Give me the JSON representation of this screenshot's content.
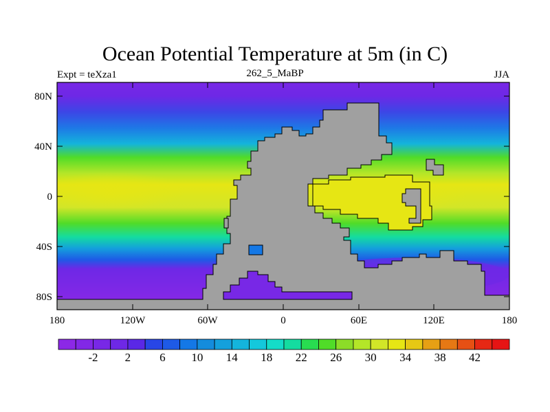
{
  "title": "Ocean Potential Temperature at 5m (in C)",
  "left_label": "Expt = teXza1",
  "center_label": "262_5_MaBP",
  "right_label": "JJA",
  "map": {
    "lon_labels": [
      "180",
      "120W",
      "60W",
      "0",
      "60E",
      "120E",
      "180"
    ],
    "lat_labels": [
      "80N",
      "40N",
      "0",
      "40S",
      "80S"
    ],
    "land_color": "#a0a0a0"
  },
  "colorbar": {
    "labels": [
      "-2",
      "2",
      "6",
      "10",
      "14",
      "18",
      "22",
      "26",
      "30",
      "34",
      "38",
      "42"
    ],
    "colors": [
      "#8c28e6",
      "#8228e6",
      "#7828e6",
      "#6e28e6",
      "#5a28e6",
      "#2846e6",
      "#1e5ae6",
      "#1478e6",
      "#148cdc",
      "#14a0dc",
      "#14b4dc",
      "#14c8dc",
      "#14dcc8",
      "#14dca0",
      "#28dc50",
      "#50dc28",
      "#8cdc28",
      "#b4e628",
      "#d2e628",
      "#e6e614",
      "#e6c814",
      "#e6a014",
      "#e67814",
      "#e65014",
      "#e62814",
      "#e61414"
    ]
  }
}
